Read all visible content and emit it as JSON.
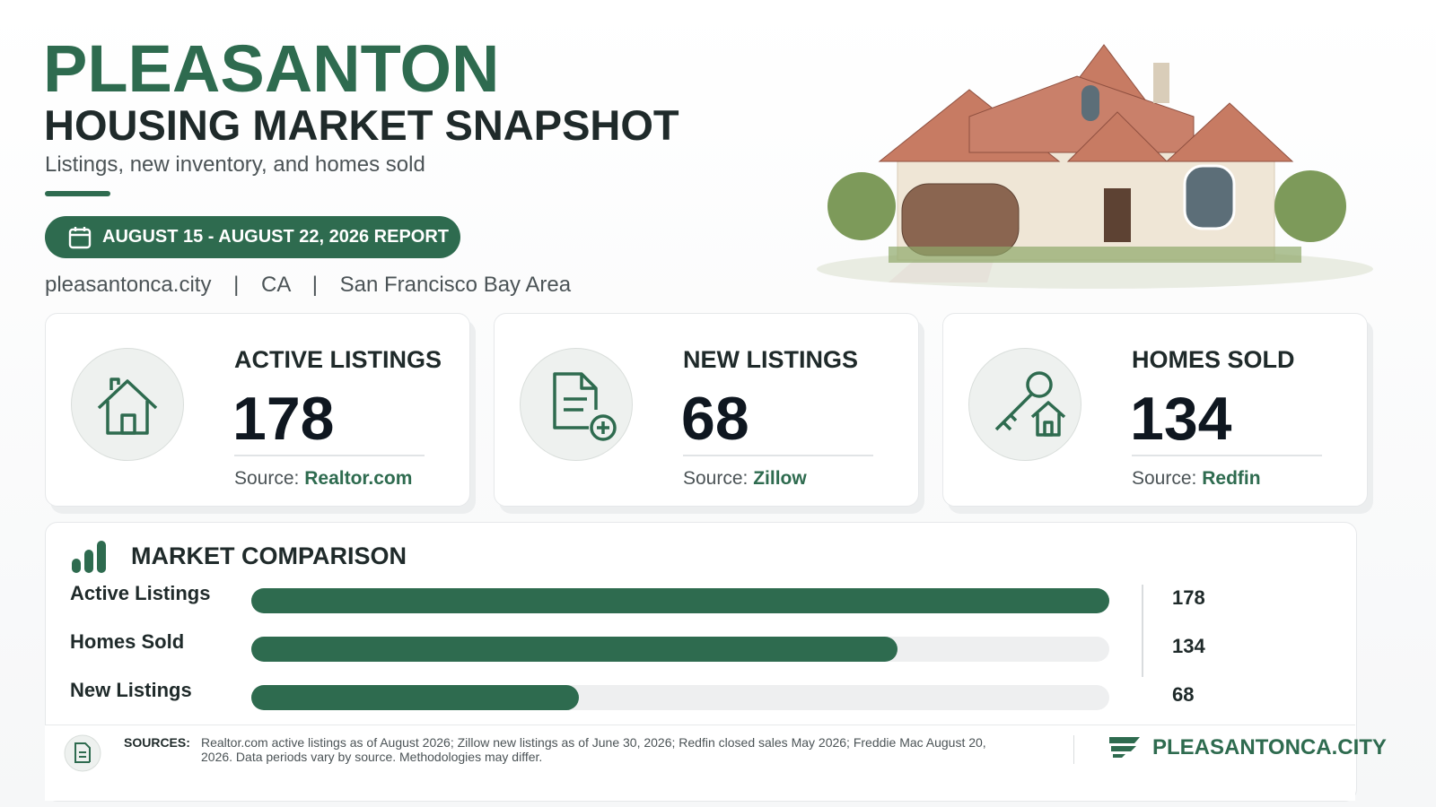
{
  "header": {
    "title": "PLEASANTON",
    "subtitle": "HOUSING MARKET SNAPSHOT",
    "tagline": "Listings, new inventory, and homes sold",
    "report_badge": "AUGUST 15 - AUGUST 22, 2026 REPORT",
    "meta": [
      "pleasantonca.city",
      "CA",
      "San Francisco Bay Area"
    ],
    "separator": "|"
  },
  "cards": [
    {
      "label": "ACTIVE LISTINGS",
      "value": 178,
      "source_prefix": "Source:",
      "source": "Realtor.com"
    },
    {
      "label": "NEW LISTINGS",
      "value": 68,
      "source_prefix": "Source:",
      "source": "Zillow"
    },
    {
      "label": "HOMES SOLD",
      "value": 134,
      "source_prefix": "Source:",
      "source": "Redfin"
    }
  ],
  "comparison": {
    "title": "MARKET COMPARISON",
    "categories": [
      "Active Listings",
      "Homes Sold",
      "New Listings"
    ],
    "values": [
      178,
      134,
      68
    ],
    "color": "#2e6b4f"
  },
  "footer": {
    "sources_label": "SOURCES:",
    "sources_text": "Realtor.com active listings as of August 2026; Zillow new listings as of June 30, 2026; Redfin closed sales May 2026; Freddie Mac August 20, 2026. Data periods vary by source. Methodologies may differ.",
    "brand": "PLEASANTONCA.CITY"
  }
}
